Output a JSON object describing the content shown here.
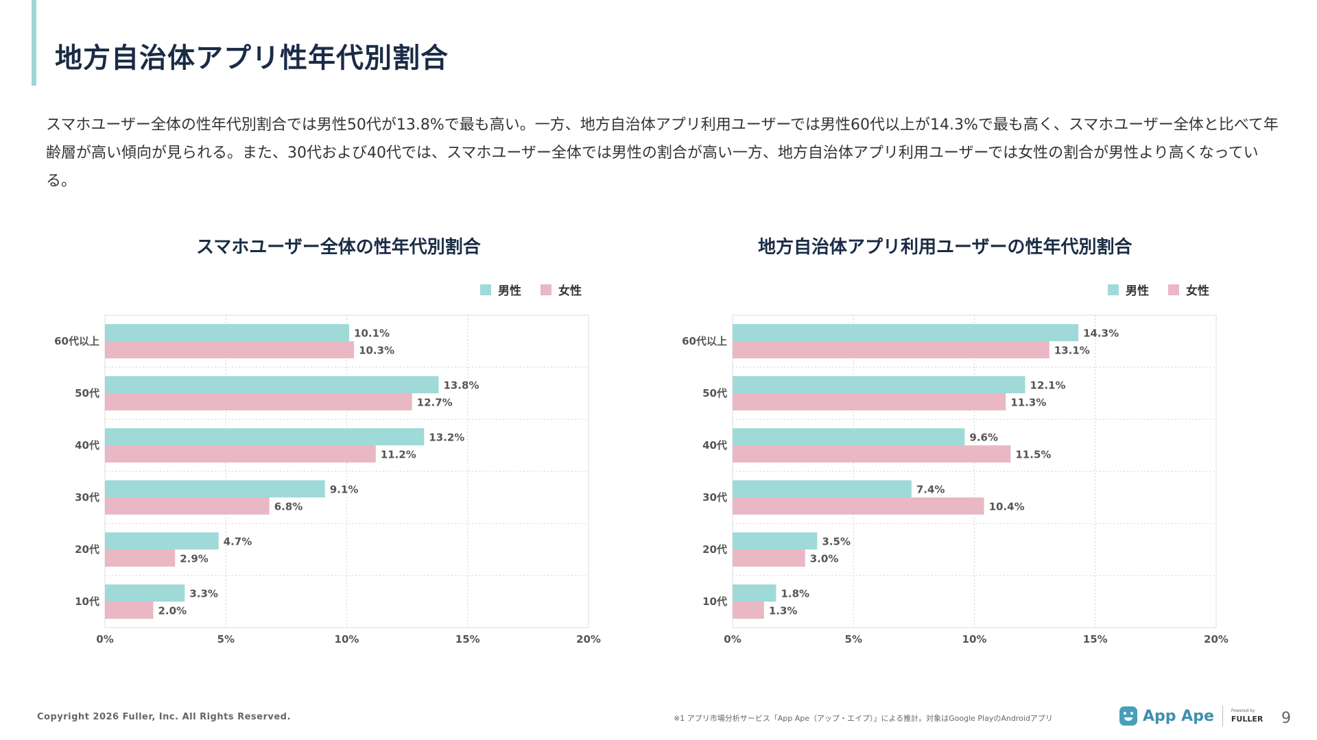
{
  "page": {
    "title": "地方自治体アプリ性年代別割合",
    "description": "スマホユーザー全体の性年代別割合では男性50代が13.8%で最も高い。一方、地方自治体アプリ利用ユーザーでは男性60代以上が14.3%で最も高く、スマホユーザー全体と比べて年齢層が高い傾向が見られる。また、30代および40代では、スマホユーザー全体では男性の割合が高い一方、地方自治体アプリ利用ユーザーでは女性の割合が男性より高くなっている。",
    "copyright": "Copyright 2026 Fuller, Inc. All Rights Reserved.",
    "footnote": "※1 アプリ市場分析サービス「App Ape（アップ・エイプ）」による推計。対象はGoogle PlayのAndroidアプリ",
    "logo_text": "App Ape",
    "powered_by": "Powered by",
    "fuller": "FULLER",
    "page_number": "9"
  },
  "colors": {
    "male": "#9fdad8",
    "female": "#e9b8c4",
    "grid": "#d0d0d0",
    "axis_text": "#555555"
  },
  "legend": {
    "male": "男性",
    "female": "女性"
  },
  "chart_data": [
    {
      "type": "bar",
      "orientation": "horizontal",
      "title": "スマホユーザー全体の性年代別割合",
      "categories": [
        "60代以上",
        "50代",
        "40代",
        "30代",
        "20代",
        "10代"
      ],
      "series": [
        {
          "name": "男性",
          "values": [
            10.1,
            13.8,
            13.2,
            9.1,
            4.7,
            3.3
          ]
        },
        {
          "name": "女性",
          "values": [
            10.3,
            12.7,
            11.2,
            6.8,
            2.9,
            2.0
          ]
        }
      ],
      "xlim": [
        0,
        20
      ],
      "xticks": [
        "0%",
        "5%",
        "10%",
        "15%",
        "20%"
      ],
      "legend_position": "top-right",
      "grid": true
    },
    {
      "type": "bar",
      "orientation": "horizontal",
      "title": "地方自治体アプリ利用ユーザーの性年代別割合",
      "categories": [
        "60代以上",
        "50代",
        "40代",
        "30代",
        "20代",
        "10代"
      ],
      "series": [
        {
          "name": "男性",
          "values": [
            14.3,
            12.1,
            9.6,
            7.4,
            3.5,
            1.8
          ]
        },
        {
          "name": "女性",
          "values": [
            13.1,
            11.3,
            11.5,
            10.4,
            3.0,
            1.3
          ]
        }
      ],
      "xlim": [
        0,
        20
      ],
      "xticks": [
        "0%",
        "5%",
        "10%",
        "15%",
        "20%"
      ],
      "legend_position": "top-right",
      "grid": true
    }
  ]
}
